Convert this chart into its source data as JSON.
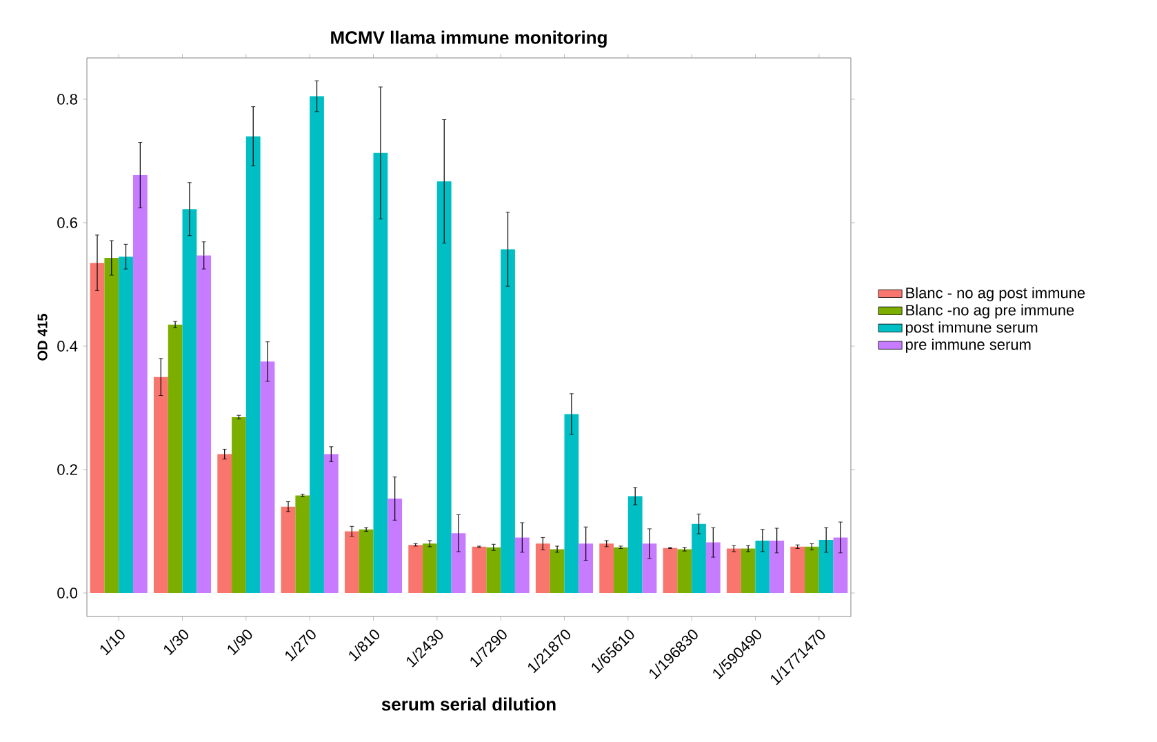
{
  "chart_data": {
    "type": "bar",
    "title": "MCMV llama immune monitoring",
    "xlabel": "serum serial dilution",
    "ylabel": "OD 415",
    "categories": [
      "1/10",
      "1/30",
      "1/90",
      "1/270",
      "1/810",
      "1/2430",
      "1/7290",
      "1/21870",
      "1/65610",
      "1/196830",
      "1/590490",
      "1/1771470"
    ],
    "series": [
      {
        "name": "Blanc - no ag post immune",
        "color": "#f8766d",
        "values": [
          0.535,
          0.35,
          0.225,
          0.14,
          0.1,
          0.078,
          0.075,
          0.08,
          0.08,
          0.073,
          0.072,
          0.075
        ],
        "errors": [
          0.045,
          0.03,
          0.008,
          0.008,
          0.008,
          0.002,
          0.001,
          0.01,
          0.005,
          0.001,
          0.005,
          0.003
        ]
      },
      {
        "name": "Blanc -no ag pre immune",
        "color": "#7cae00",
        "values": [
          0.543,
          0.435,
          0.285,
          0.158,
          0.103,
          0.08,
          0.074,
          0.071,
          0.074,
          0.071,
          0.072,
          0.075
        ],
        "errors": [
          0.028,
          0.005,
          0.003,
          0.002,
          0.003,
          0.005,
          0.005,
          0.005,
          0.002,
          0.003,
          0.005,
          0.005
        ]
      },
      {
        "name": "post immune serum",
        "color": "#00bfc4",
        "values": [
          0.545,
          0.622,
          0.74,
          0.805,
          0.713,
          0.667,
          0.557,
          0.29,
          0.157,
          0.112,
          0.085,
          0.086
        ],
        "errors": [
          0.02,
          0.043,
          0.048,
          0.025,
          0.107,
          0.1,
          0.06,
          0.033,
          0.014,
          0.016,
          0.018,
          0.02
        ]
      },
      {
        "name": "pre immune serum",
        "color": "#c77cff",
        "values": [
          0.677,
          0.547,
          0.375,
          0.225,
          0.153,
          0.097,
          0.09,
          0.08,
          0.08,
          0.082,
          0.085,
          0.09
        ],
        "errors": [
          0.053,
          0.022,
          0.032,
          0.012,
          0.035,
          0.03,
          0.024,
          0.027,
          0.024,
          0.024,
          0.02,
          0.025
        ]
      }
    ],
    "ylim": [
      -0.038,
      0.867
    ],
    "yticks": [
      {
        "value": 0,
        "label": "0.0"
      },
      {
        "value": 0.2,
        "label": "0.2"
      },
      {
        "value": 0.4,
        "label": "0.4"
      },
      {
        "value": 0.6,
        "label": "0.6"
      },
      {
        "value": 0.8,
        "label": "0.8"
      }
    ],
    "grid": false,
    "legend": "right"
  }
}
